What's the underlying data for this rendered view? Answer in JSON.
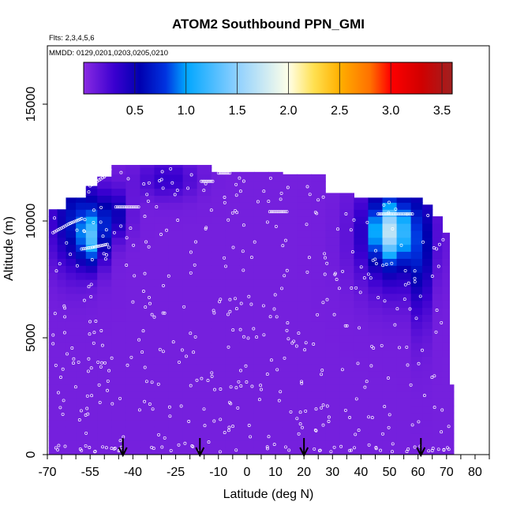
{
  "chart_data": {
    "type": "heatmap",
    "title": "ATOM2 Southbound PPN_GMI",
    "annotations": {
      "flights": "Flts: 2,3,4,5,6",
      "dates": "MMDD: 0129,0201,0203,0205,0210"
    },
    "xlabel": "Latitude (deg N)",
    "ylabel": "Altitude (m)",
    "xlim": [
      -70,
      85
    ],
    "ylim": [
      0,
      17500
    ],
    "xticks": [
      -70,
      -55,
      -40,
      -25,
      -10,
      0,
      10,
      20,
      30,
      40,
      50,
      60,
      70,
      80
    ],
    "xtick_labels": [
      "-70",
      "-55",
      "-40",
      "-25",
      "-10",
      "0",
      "10",
      "20",
      "30",
      "40",
      "50",
      "60",
      "70",
      "80"
    ],
    "xminor_step": 5,
    "yticks": [
      0,
      5000,
      10000,
      15000
    ],
    "ytick_labels": [
      "0",
      "5000",
      "10000",
      "15000"
    ],
    "colorbar": {
      "min": 0,
      "max": 3.6,
      "ticks": [
        0.5,
        1.0,
        1.5,
        2.0,
        2.5,
        3.0,
        3.5
      ],
      "tick_labels": [
        "0.5",
        "1.0",
        "1.5",
        "2.0",
        "2.5",
        "3.0",
        "3.5"
      ],
      "stops": [
        {
          "v": 0.0,
          "c": "#8a2be2"
        },
        {
          "v": 0.3,
          "c": "#3a00d0"
        },
        {
          "v": 0.55,
          "c": "#0000b0"
        },
        {
          "v": 0.8,
          "c": "#0033e0"
        },
        {
          "v": 1.0,
          "c": "#00a6ff"
        },
        {
          "v": 1.5,
          "c": "#8fd0ff"
        },
        {
          "v": 2.0,
          "c": "#ffffe8"
        },
        {
          "v": 2.25,
          "c": "#ffe050"
        },
        {
          "v": 2.5,
          "c": "#ffb000"
        },
        {
          "v": 2.8,
          "c": "#ff7000"
        },
        {
          "v": 3.0,
          "c": "#ff0000"
        },
        {
          "v": 3.3,
          "c": "#d00000"
        },
        {
          "v": 3.6,
          "c": "#a02020"
        }
      ]
    },
    "background_value": 0.08,
    "columns": [
      {
        "lat": -68,
        "top": 10500
      },
      {
        "lat": -65,
        "top": 10500
      },
      {
        "lat": -62,
        "top": 11000
      },
      {
        "lat": -58,
        "top": 11000
      },
      {
        "lat": -55,
        "top": 11500
      },
      {
        "lat": -50,
        "top": 11900
      },
      {
        "lat": -45,
        "top": 12400
      },
      {
        "lat": -40,
        "top": 12400
      },
      {
        "lat": -35,
        "top": 12400
      },
      {
        "lat": -30,
        "top": 12400
      },
      {
        "lat": -25,
        "top": 12400
      },
      {
        "lat": -20,
        "top": 12400
      },
      {
        "lat": -15,
        "top": 12400
      },
      {
        "lat": -10,
        "top": 12100
      },
      {
        "lat": -5,
        "top": 12100
      },
      {
        "lat": 0,
        "top": 12100
      },
      {
        "lat": 5,
        "top": 12100
      },
      {
        "lat": 10,
        "top": 12100
      },
      {
        "lat": 15,
        "top": 12000
      },
      {
        "lat": 20,
        "top": 12000
      },
      {
        "lat": 25,
        "top": 12000
      },
      {
        "lat": 30,
        "top": 11200
      },
      {
        "lat": 35,
        "top": 11200
      },
      {
        "lat": 40,
        "top": 11000
      },
      {
        "lat": 45,
        "top": 11000
      },
      {
        "lat": 50,
        "top": 11000
      },
      {
        "lat": 55,
        "top": 11000
      },
      {
        "lat": 60,
        "top": 11000
      },
      {
        "lat": 63,
        "top": 10700
      },
      {
        "lat": 67,
        "top": 10200
      },
      {
        "lat": 70,
        "top": 9500
      },
      {
        "lat": 72,
        "top": 3000
      }
    ],
    "blobs": [
      {
        "lat": -60,
        "alt": 10000,
        "rlat": 8,
        "ralt": 2000,
        "value": 0.6
      },
      {
        "lat": -54,
        "alt": 9300,
        "rlat": 4,
        "ralt": 1100,
        "value": 0.9
      },
      {
        "lat": -47,
        "alt": 10300,
        "rlat": 5,
        "ralt": 1000,
        "value": 0.45
      },
      {
        "lat": -28,
        "alt": 11800,
        "rlat": 10,
        "ralt": 800,
        "value": 0.25
      },
      {
        "lat": 52,
        "alt": 9400,
        "rlat": 12,
        "ralt": 2200,
        "value": 0.6
      },
      {
        "lat": 50,
        "alt": 9600,
        "rlat": 6,
        "ralt": 1200,
        "value": 1.05
      },
      {
        "lat": 61,
        "alt": 8500,
        "rlat": 3,
        "ralt": 3000,
        "value": 0.35
      }
    ],
    "flight_tracks": [
      {
        "points": [
          [
            -68,
            9500
          ],
          [
            -62,
            9900
          ],
          [
            -58,
            10100
          ]
        ]
      },
      {
        "points": [
          [
            -58,
            8800
          ],
          [
            -53,
            8900
          ],
          [
            -49,
            9000
          ]
        ]
      },
      {
        "points": [
          [
            -55,
            11500
          ],
          [
            -50,
            11900
          ],
          [
            -48,
            12200
          ]
        ]
      },
      {
        "points": [
          [
            -10,
            12050
          ],
          [
            -6,
            12050
          ]
        ]
      },
      {
        "points": [
          [
            -16,
            11700
          ],
          [
            -12,
            11700
          ]
        ]
      },
      {
        "points": [
          [
            8,
            10400
          ],
          [
            14,
            10400
          ]
        ]
      },
      {
        "points": [
          [
            -46,
            10600
          ],
          [
            -38,
            10600
          ]
        ]
      },
      {
        "points": [
          [
            46,
            10300
          ],
          [
            58,
            10300
          ]
        ]
      }
    ],
    "arrows_lat": [
      -43.5,
      -16.5,
      20,
      61
    ],
    "seed": 7
  }
}
